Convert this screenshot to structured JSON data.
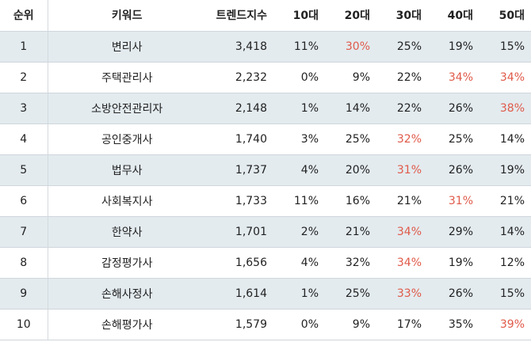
{
  "table": {
    "headers": {
      "rank": "순위",
      "keyword": "키워드",
      "trend": "트렌드지수",
      "age10": "10대",
      "age20": "20대",
      "age30": "30대",
      "age40": "40대",
      "age50": "50대"
    },
    "highlight_color": "#e05a4a",
    "row_stripe_color": "#e3ebef",
    "rows": [
      {
        "rank": "1",
        "keyword": "변리사",
        "trend": "3,418",
        "age10": "11%",
        "age20": "30%",
        "age30": "25%",
        "age40": "19%",
        "age50": "15%",
        "highlight": "age20"
      },
      {
        "rank": "2",
        "keyword": "주택관리사",
        "trend": "2,232",
        "age10": "0%",
        "age20": "9%",
        "age30": "22%",
        "age40": "34%",
        "age50": "34%",
        "highlight": "age40,age50"
      },
      {
        "rank": "3",
        "keyword": "소방안전관리자",
        "trend": "2,148",
        "age10": "1%",
        "age20": "14%",
        "age30": "22%",
        "age40": "26%",
        "age50": "38%",
        "highlight": "age50"
      },
      {
        "rank": "4",
        "keyword": "공인중개사",
        "trend": "1,740",
        "age10": "3%",
        "age20": "25%",
        "age30": "32%",
        "age40": "25%",
        "age50": "14%",
        "highlight": "age30"
      },
      {
        "rank": "5",
        "keyword": "법무사",
        "trend": "1,737",
        "age10": "4%",
        "age20": "20%",
        "age30": "31%",
        "age40": "26%",
        "age50": "19%",
        "highlight": "age30"
      },
      {
        "rank": "6",
        "keyword": "사회복지사",
        "trend": "1,733",
        "age10": "11%",
        "age20": "16%",
        "age30": "21%",
        "age40": "31%",
        "age50": "21%",
        "highlight": "age40"
      },
      {
        "rank": "7",
        "keyword": "한약사",
        "trend": "1,701",
        "age10": "2%",
        "age20": "21%",
        "age30": "34%",
        "age40": "29%",
        "age50": "14%",
        "highlight": "age30"
      },
      {
        "rank": "8",
        "keyword": "감정평가사",
        "trend": "1,656",
        "age10": "4%",
        "age20": "32%",
        "age30": "34%",
        "age40": "19%",
        "age50": "12%",
        "highlight": "age30"
      },
      {
        "rank": "9",
        "keyword": "손해사정사",
        "trend": "1,614",
        "age10": "1%",
        "age20": "25%",
        "age30": "33%",
        "age40": "26%",
        "age50": "15%",
        "highlight": "age30"
      },
      {
        "rank": "10",
        "keyword": "손해평가사",
        "trend": "1,579",
        "age10": "0%",
        "age20": "9%",
        "age30": "17%",
        "age40": "35%",
        "age50": "39%",
        "highlight": "age50"
      }
    ]
  }
}
